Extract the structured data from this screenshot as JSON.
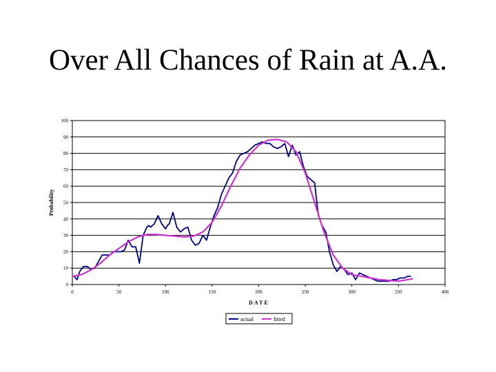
{
  "slide": {
    "title": "Over All Chances of Rain at A.A."
  },
  "chart_data": {
    "type": "line",
    "xlabel": "DATE",
    "ylabel": "Probability",
    "xlim": [
      0,
      400
    ],
    "ylim": [
      0,
      100
    ],
    "x_ticks": [
      0,
      50,
      100,
      150,
      200,
      250,
      300,
      350,
      400
    ],
    "y_ticks": [
      0,
      10,
      20,
      30,
      40,
      50,
      60,
      70,
      80,
      90,
      100
    ],
    "grid": "horizontal",
    "legend_position": "bottom",
    "series": [
      {
        "name": "actual",
        "color": "#000080",
        "x": [
          2,
          5,
          8,
          12,
          16,
          20,
          24,
          28,
          32,
          36,
          40,
          44,
          48,
          52,
          56,
          60,
          64,
          68,
          72,
          76,
          80,
          82,
          84,
          88,
          92,
          96,
          100,
          102,
          104,
          108,
          112,
          116,
          120,
          124,
          128,
          132,
          136,
          140,
          144,
          148,
          152,
          156,
          160,
          164,
          168,
          172,
          176,
          180,
          184,
          188,
          192,
          196,
          200,
          204,
          208,
          212,
          216,
          220,
          224,
          228,
          232,
          236,
          240,
          244,
          248,
          252,
          256,
          260,
          264,
          268,
          272,
          276,
          280,
          284,
          288,
          292,
          296,
          300,
          304,
          308,
          312,
          316,
          320,
          324,
          328,
          332,
          336,
          340,
          344,
          348,
          352,
          356,
          360,
          363
        ],
        "y": [
          5,
          3,
          8,
          11,
          11,
          9,
          10,
          14,
          18,
          18,
          18,
          20,
          20,
          20,
          21,
          27,
          23,
          23,
          13,
          30,
          35,
          36,
          35,
          37,
          42,
          37,
          34,
          36,
          37,
          44,
          35,
          32,
          34,
          35,
          27,
          24,
          25,
          30,
          27,
          35,
          42,
          47,
          55,
          60,
          65,
          68,
          75,
          79,
          80,
          81,
          83,
          85,
          86,
          87,
          86,
          86,
          84,
          83,
          84,
          86,
          78,
          85,
          79,
          81,
          72,
          66,
          64,
          62,
          42,
          36,
          32,
          20,
          12,
          8,
          11,
          9,
          6,
          7,
          3,
          7,
          6,
          5,
          4,
          3,
          2,
          2,
          2,
          2,
          3,
          3,
          4,
          4,
          5,
          5
        ]
      },
      {
        "name": "fitted",
        "color": "#cc33cc",
        "x": [
          0,
          10,
          20,
          30,
          40,
          50,
          60,
          70,
          80,
          90,
          100,
          110,
          120,
          130,
          140,
          150,
          160,
          170,
          180,
          190,
          200,
          210,
          220,
          230,
          240,
          250,
          260,
          270,
          280,
          290,
          300,
          310,
          320,
          330,
          340,
          350,
          360,
          365
        ],
        "y": [
          5,
          6,
          9,
          13,
          18,
          22,
          26,
          29,
          30.5,
          30.5,
          30,
          29.5,
          29,
          29.5,
          32,
          38,
          48,
          60,
          71,
          79,
          85,
          88,
          88.5,
          87,
          81,
          68,
          50,
          32,
          18,
          10,
          6,
          5,
          4,
          3,
          2.5,
          2,
          3,
          3.5
        ]
      }
    ]
  }
}
